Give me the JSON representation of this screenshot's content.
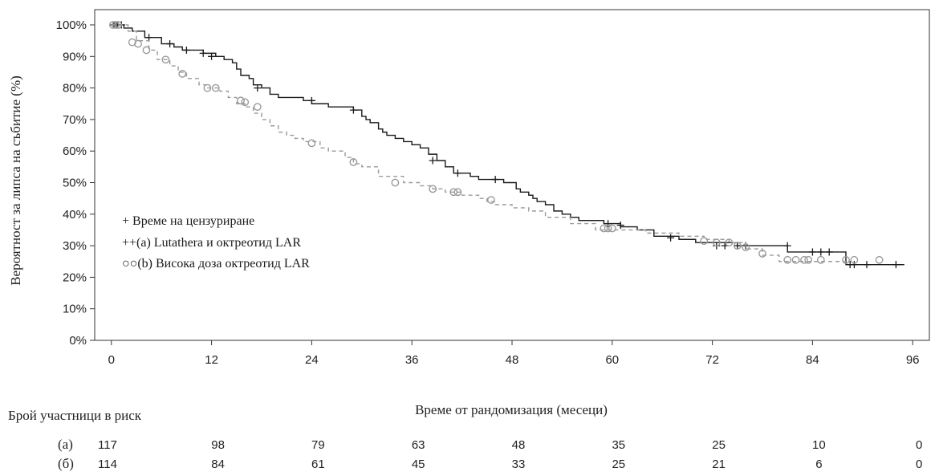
{
  "chart_data": {
    "type": "line",
    "step": true,
    "title": "",
    "xlabel": "Време от рандомизация (месеци)",
    "ylabel": "Вероятност за липса на събитие (%)",
    "xlim": [
      -2,
      98
    ],
    "ylim": [
      0,
      105
    ],
    "xticks": [
      0,
      12,
      24,
      36,
      48,
      60,
      72,
      84,
      96
    ],
    "yticks": [
      0,
      10,
      20,
      30,
      40,
      50,
      60,
      70,
      80,
      90,
      100
    ],
    "ytick_suffix": "%",
    "grid": false,
    "legend_position": "middle-left",
    "legend": [
      "+ Време на цензуриране",
      "++(a) Lutathera и октреотид LAR",
      "○○(b) Висока доза октреотид LAR"
    ],
    "series": [
      {
        "label": "(a)",
        "color": "#1a1a1a",
        "dash": "",
        "marker": "plus",
        "x": [
          0,
          1.5,
          2.5,
          4,
          6,
          7.5,
          8.5,
          11,
          12.5,
          13.5,
          14.5,
          15,
          15.5,
          16.5,
          17,
          18,
          19,
          20,
          23,
          24,
          26,
          27,
          29,
          30,
          30.5,
          31,
          32,
          32.5,
          33,
          34,
          35,
          36,
          37,
          38,
          39,
          40,
          41,
          43,
          44,
          46,
          47,
          48,
          48.5,
          49,
          50,
          50.5,
          51,
          52,
          53,
          54,
          55,
          56,
          57,
          59,
          61,
          63,
          65,
          68,
          70,
          72,
          75,
          78,
          81,
          88,
          95
        ],
        "y": [
          100,
          99,
          98,
          96,
          94,
          93,
          92,
          91,
          90,
          89,
          88,
          86,
          84,
          83,
          81,
          80,
          78,
          77,
          76,
          75,
          74,
          74,
          73,
          71,
          70,
          69,
          67,
          66,
          65,
          64,
          63,
          62,
          61,
          59,
          57,
          55,
          53,
          52,
          51,
          51,
          50,
          50,
          48,
          47,
          46,
          45,
          44,
          43,
          41,
          40,
          39,
          38,
          38,
          37,
          36,
          35,
          33,
          32,
          31,
          31,
          30,
          30,
          28,
          24,
          24
        ],
        "censored_x": [
          0.3,
          0.7,
          1.2,
          4.5,
          7,
          9,
          11,
          12,
          17.5,
          24,
          29,
          38.5,
          41.5,
          46,
          59.5,
          61,
          67,
          72.5,
          73.5,
          75,
          76,
          81,
          84,
          85,
          86,
          88.5,
          89,
          90.5,
          94
        ],
        "censored_y": [
          100,
          100,
          100,
          96,
          94,
          92,
          91,
          90,
          80,
          76,
          73,
          57,
          53,
          51,
          37,
          36.5,
          32.5,
          30,
          30,
          30,
          30,
          30,
          28,
          28,
          28,
          24,
          24,
          24,
          24
        ]
      },
      {
        "label": "(b)",
        "color": "#9a9a9a",
        "dash": "5,4",
        "marker": "circle",
        "x": [
          0,
          2,
          3,
          4.5,
          5.5,
          7,
          8,
          9,
          10.5,
          11.5,
          13,
          14,
          15,
          16,
          17,
          18,
          19,
          20,
          21,
          22,
          23,
          25,
          26,
          28,
          29,
          30,
          32,
          35,
          37,
          38.5,
          40,
          42,
          44,
          45,
          46,
          48,
          50,
          52,
          55,
          58,
          64,
          68,
          71,
          74,
          76,
          78,
          80,
          88
        ],
        "y": [
          100,
          98,
          95,
          92,
          89,
          87,
          85,
          83,
          81,
          80,
          79,
          77,
          75,
          74,
          72,
          70,
          68,
          66,
          65,
          64,
          63,
          61,
          60,
          58,
          56,
          55,
          52,
          50,
          49,
          48,
          47,
          46,
          45,
          44,
          43,
          42,
          41,
          39,
          37,
          35,
          34,
          33,
          32,
          31,
          29,
          27,
          25,
          25
        ],
        "censored_x": [
          0.2,
          0.5,
          0.8,
          2.5,
          3.2,
          4.2,
          6.5,
          8.5,
          11.5,
          12.5,
          15.5,
          16,
          17.5,
          24,
          29,
          34,
          38.5,
          41,
          41.5,
          45.5,
          59,
          59.5,
          60,
          71,
          72.5,
          74,
          75,
          76,
          78,
          81,
          82,
          83,
          83.5,
          85,
          88,
          89,
          92
        ],
        "censored_y": [
          100,
          100,
          100,
          94.5,
          94,
          92,
          89,
          84.5,
          80,
          80,
          76,
          75.5,
          74,
          62.5,
          56.5,
          50,
          48,
          47,
          47,
          44.5,
          35.5,
          35.5,
          35.5,
          31.5,
          31,
          31,
          30,
          29.5,
          27.5,
          25.5,
          25.5,
          25.5,
          25.5,
          25.5,
          25.5,
          25.5,
          25.5
        ]
      }
    ]
  },
  "risk_table": {
    "title": "Брой участници в риск",
    "time_points": [
      0,
      12,
      24,
      36,
      48,
      60,
      72,
      84,
      96
    ],
    "rows": [
      {
        "label": "(a)",
        "values": [
          "117",
          "98",
          "79",
          "63",
          "48",
          "35",
          "25",
          "10",
          "0"
        ]
      },
      {
        "label": "(б)",
        "values": [
          "114",
          "84",
          "61",
          "45",
          "33",
          "25",
          "21",
          "6",
          "0"
        ]
      }
    ]
  }
}
